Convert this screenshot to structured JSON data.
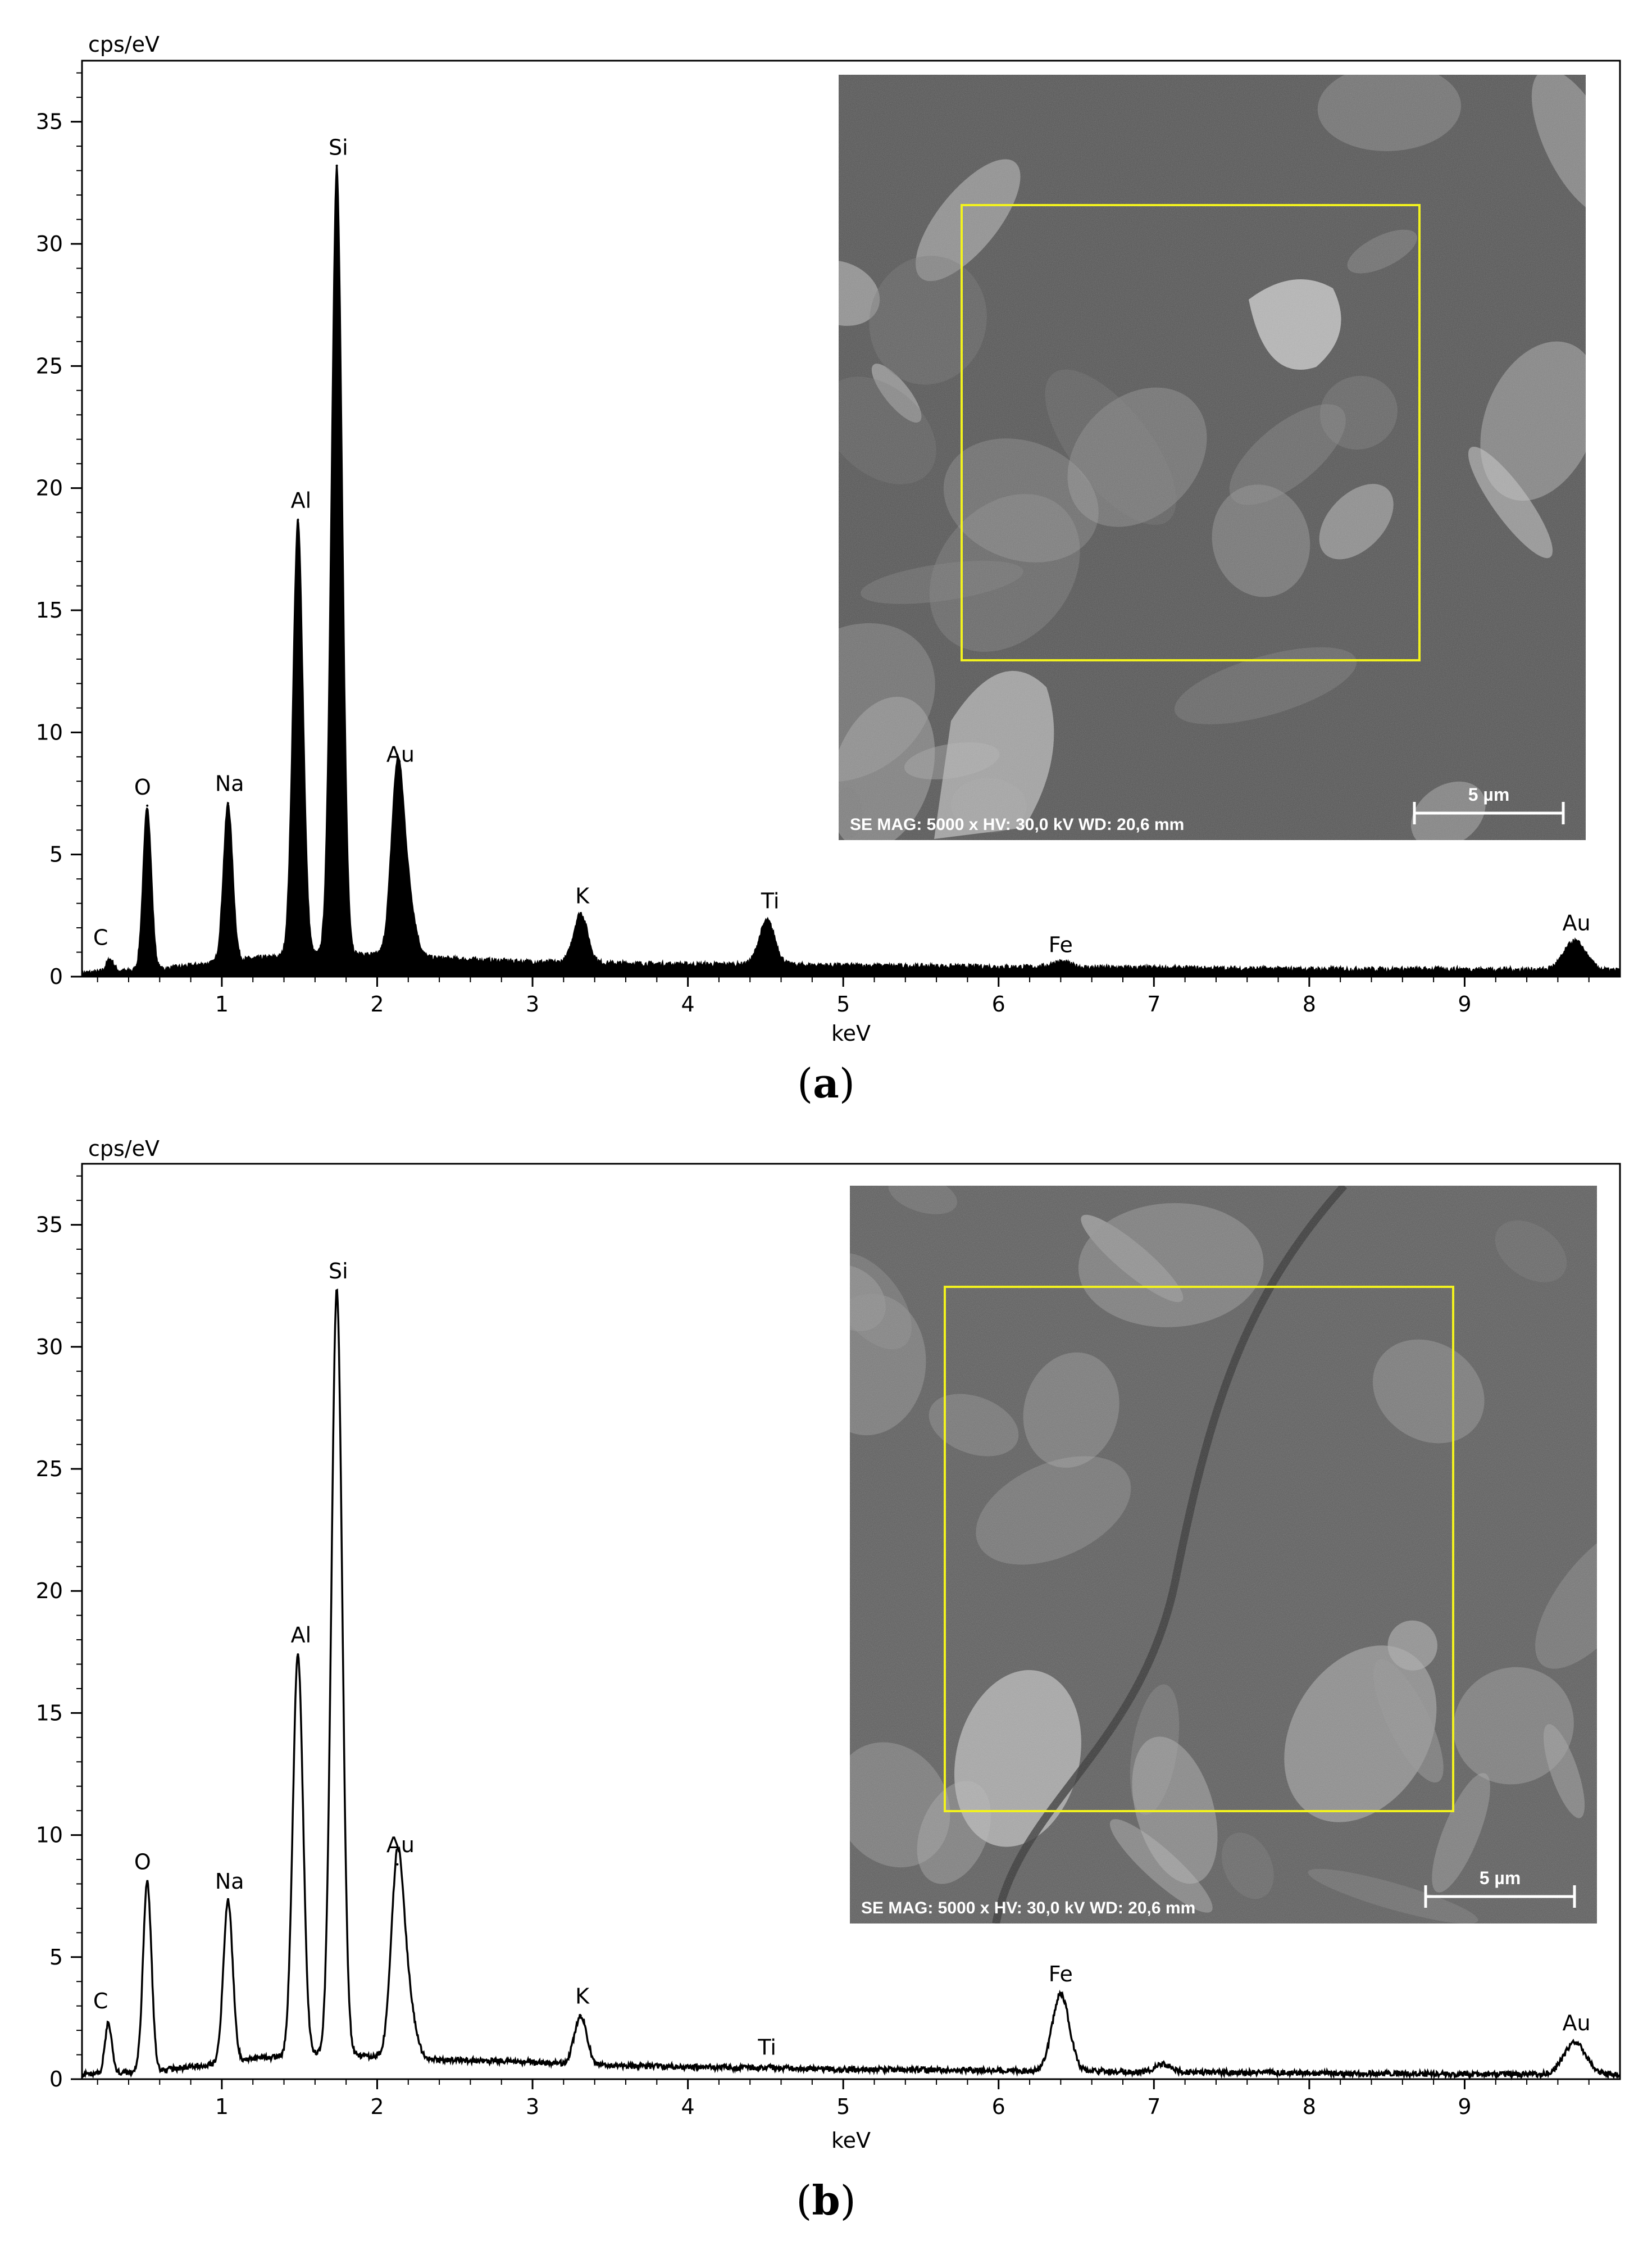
{
  "panels": [
    {
      "label": "a",
      "chart_data": {
        "type": "line",
        "style": "filled",
        "ylabel": "cps/eV",
        "xlabel": "keV",
        "xlim": [
          0.1,
          10.0
        ],
        "ylim": [
          0,
          37.5
        ],
        "xticks": [
          1,
          2,
          3,
          4,
          5,
          6,
          7,
          8,
          9
        ],
        "yticks": [
          0,
          5,
          10,
          15,
          20,
          25,
          30,
          35
        ],
        "grid": false,
        "baseline": [
          [
            0.1,
            0.15
          ],
          [
            0.6,
            0.3
          ],
          [
            1.2,
            0.75
          ],
          [
            1.6,
            0.9
          ],
          [
            2.0,
            0.9
          ],
          [
            2.4,
            0.75
          ],
          [
            3.0,
            0.6
          ],
          [
            3.5,
            0.55
          ],
          [
            4.0,
            0.5
          ],
          [
            4.5,
            0.5
          ],
          [
            5.0,
            0.45
          ],
          [
            6.0,
            0.4
          ],
          [
            7.0,
            0.35
          ],
          [
            8.0,
            0.3
          ],
          [
            9.0,
            0.3
          ],
          [
            10.0,
            0.25
          ]
        ],
        "peaks": [
          {
            "label": "C",
            "x": 0.28,
            "y": 0.7,
            "w": 0.025
          },
          {
            "label": "O",
            "x": 0.52,
            "y": 7.0,
            "w": 0.027
          },
          {
            "label": "Na",
            "x": 1.04,
            "y": 7.1,
            "w": 0.03
          },
          {
            "label": "Al",
            "x": 1.49,
            "y": 18.7,
            "w": 0.033
          },
          {
            "label": "Si",
            "x": 1.74,
            "y": 33.2,
            "w": 0.035
          },
          {
            "label": "Au",
            "x": 2.13,
            "y": 8.3,
            "w": 0.04
          },
          {
            "label": "K",
            "x": 3.31,
            "y": 2.6,
            "w": 0.045
          },
          {
            "label": "Ti",
            "x": 4.51,
            "y": 2.3,
            "w": 0.05
          },
          {
            "label": "Fe",
            "x": 6.4,
            "y": 0.6,
            "w": 0.06
          },
          {
            "label": "Au",
            "x": 9.71,
            "y": 1.45,
            "w": 0.07
          }
        ],
        "minor_peaks": [
          {
            "x": 2.2,
            "y": 3.0,
            "w": 0.045
          },
          {
            "x": 3.58,
            "y": 0.3,
            "w": 0.05
          },
          {
            "x": 4.93,
            "y": 0.35,
            "w": 0.05
          },
          {
            "x": 8.5,
            "y": 0.1,
            "w": 0.06
          }
        ],
        "labels": [
          {
            "text": "C",
            "x": 0.22,
            "y": 1.3
          },
          {
            "text": "O",
            "x": 0.49,
            "y": 7.45
          },
          {
            "text": "Na",
            "x": 1.05,
            "y": 7.6
          },
          {
            "text": "Al",
            "x": 1.51,
            "y": 19.2
          },
          {
            "text": "Si",
            "x": 1.75,
            "y": 33.65
          },
          {
            "text": "Au",
            "x": 2.15,
            "y": 8.8
          },
          {
            "text": "K",
            "x": 3.32,
            "y": 3.0
          },
          {
            "text": "Ti",
            "x": 4.53,
            "y": 2.8
          },
          {
            "text": "Fe",
            "x": 6.4,
            "y": 1.0
          },
          {
            "text": "Au",
            "x": 9.72,
            "y": 1.9
          }
        ]
      },
      "inset": {
        "info": "SE MAG: 5000 x HV: 30,0 kV WD: 20,6 mm",
        "scale": "5 µm",
        "selection_color": "#f2f21e",
        "background": "#535353"
      }
    },
    {
      "label": "b",
      "chart_data": {
        "type": "line",
        "style": "outline",
        "ylabel": "cps/eV",
        "xlabel": "keV",
        "xlim": [
          0.1,
          10.0
        ],
        "ylim": [
          0,
          37.5
        ],
        "xticks": [
          1,
          2,
          3,
          4,
          5,
          6,
          7,
          8,
          9
        ],
        "yticks": [
          0,
          5,
          10,
          15,
          20,
          25,
          30,
          35
        ],
        "grid": false,
        "baseline": [
          [
            0.1,
            0.2
          ],
          [
            0.6,
            0.35
          ],
          [
            1.2,
            0.85
          ],
          [
            1.6,
            1.0
          ],
          [
            2.0,
            0.95
          ],
          [
            2.4,
            0.8
          ],
          [
            3.0,
            0.7
          ],
          [
            3.5,
            0.55
          ],
          [
            4.0,
            0.5
          ],
          [
            4.5,
            0.45
          ],
          [
            5.0,
            0.4
          ],
          [
            6.0,
            0.35
          ],
          [
            7.0,
            0.3
          ],
          [
            8.0,
            0.25
          ],
          [
            9.0,
            0.2
          ],
          [
            10.0,
            0.2
          ]
        ],
        "peaks": [
          {
            "label": "C",
            "x": 0.27,
            "y": 2.3,
            "w": 0.022
          },
          {
            "label": "O",
            "x": 0.52,
            "y": 8.1,
            "w": 0.027
          },
          {
            "label": "Na",
            "x": 1.04,
            "y": 7.3,
            "w": 0.03
          },
          {
            "label": "Al",
            "x": 1.49,
            "y": 17.4,
            "w": 0.033
          },
          {
            "label": "Si",
            "x": 1.74,
            "y": 32.3,
            "w": 0.035
          },
          {
            "label": "Au",
            "x": 2.13,
            "y": 8.8,
            "w": 0.04
          },
          {
            "label": "K",
            "x": 3.31,
            "y": 2.6,
            "w": 0.04
          },
          {
            "label": "Ti",
            "x": 4.51,
            "y": 0.5,
            "w": 0.05
          },
          {
            "label": "Fe",
            "x": 6.4,
            "y": 3.5,
            "w": 0.055
          },
          {
            "label": "Au",
            "x": 9.71,
            "y": 1.5,
            "w": 0.07
          }
        ],
        "minor_peaks": [
          {
            "x": 2.2,
            "y": 3.0,
            "w": 0.045
          },
          {
            "x": 0.7,
            "y": 0.4,
            "w": 0.03
          },
          {
            "x": 3.55,
            "y": 0.2,
            "w": 0.04
          },
          {
            "x": 7.06,
            "y": 0.6,
            "w": 0.05
          }
        ],
        "labels": [
          {
            "text": "C",
            "x": 0.22,
            "y": 2.9
          },
          {
            "text": "O",
            "x": 0.49,
            "y": 8.6
          },
          {
            "text": "Na",
            "x": 1.05,
            "y": 7.8
          },
          {
            "text": "Al",
            "x": 1.51,
            "y": 17.9
          },
          {
            "text": "Si",
            "x": 1.75,
            "y": 32.8
          },
          {
            "text": "Au",
            "x": 2.15,
            "y": 9.3
          },
          {
            "text": "K",
            "x": 3.32,
            "y": 3.1
          },
          {
            "text": "Ti",
            "x": 4.51,
            "y": 1.0
          },
          {
            "text": "Fe",
            "x": 6.4,
            "y": 4.0
          },
          {
            "text": "Au",
            "x": 9.72,
            "y": 2.0
          }
        ]
      },
      "inset": {
        "info": "SE MAG: 5000 x HV: 30,0 kV WD: 20,6 mm",
        "scale": "5 µm",
        "selection_color": "#f2f21e",
        "background": "#5c5c5c"
      }
    }
  ]
}
